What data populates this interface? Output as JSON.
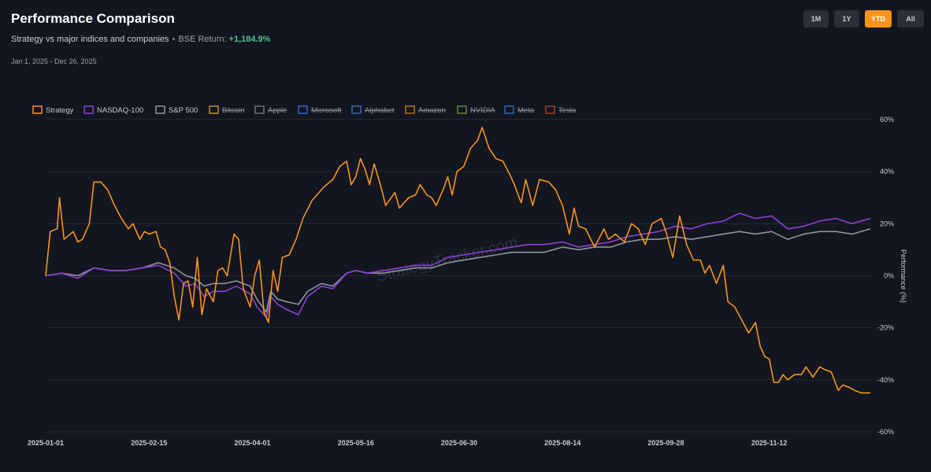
{
  "header": {
    "title": "Performance Comparison",
    "subtitle": "Strategy vs major indices and companies",
    "return_label": "BSE Return:",
    "return_value": "+1,184.9%",
    "date_range": "Jan 1, 2025 - Dec 26, 2025"
  },
  "range_buttons": [
    {
      "label": "1M",
      "active": false
    },
    {
      "label": "1Y",
      "active": false
    },
    {
      "label": "YTD",
      "active": true
    },
    {
      "label": "All",
      "active": false
    }
  ],
  "watermark": "StrategyTracker.com",
  "colors": {
    "background": "#121620",
    "grid": "#232833",
    "strategy": "#f7931a",
    "nasdaq": "#8b3fd6",
    "sp500": "#8f949c",
    "return_positive": "#4cc38a",
    "active_button": "#f7931a"
  },
  "chart_data": {
    "type": "line",
    "ylabel": "Performance (%)",
    "ylim": [
      -60,
      60
    ],
    "yticks": [
      "60%",
      "40%",
      "20%",
      "0%",
      "-20%",
      "-40%",
      "-60%"
    ],
    "x_ticks": [
      "2025-01-01",
      "2025-02-15",
      "2025-04-01",
      "2025-05-16",
      "2025-06-30",
      "2025-08-14",
      "2025-09-28",
      "2025-11-12"
    ],
    "x_range": [
      "2025-01-01",
      "2025-12-26"
    ],
    "grid": true,
    "legend_position": "top-left",
    "legend": [
      {
        "name": "Strategy",
        "color": "#f7931a",
        "visible": true
      },
      {
        "name": "NASDAQ-100",
        "color": "#8b3fd6",
        "visible": true
      },
      {
        "name": "S&P 500",
        "color": "#8f949c",
        "visible": true
      },
      {
        "name": "Bitcoin",
        "color": "#f7b731",
        "visible": false
      },
      {
        "name": "Apple",
        "color": "#8a8f99",
        "visible": false
      },
      {
        "name": "Microsoft",
        "color": "#3b82f6",
        "visible": false
      },
      {
        "name": "Alphabet",
        "color": "#4f7fe0",
        "visible": false
      },
      {
        "name": "Amazon",
        "color": "#f08c1a",
        "visible": false
      },
      {
        "name": "NVIDIA",
        "color": "#86a83a",
        "visible": false
      },
      {
        "name": "Meta",
        "color": "#3a7fd5",
        "visible": false
      },
      {
        "name": "Tesla",
        "color": "#d9481f",
        "visible": false
      }
    ],
    "series": [
      {
        "name": "Strategy",
        "color": "#f7931a",
        "points": [
          [
            "2025-01-01",
            0
          ],
          [
            "2025-01-03",
            17
          ],
          [
            "2025-01-06",
            18
          ],
          [
            "2025-01-07",
            30
          ],
          [
            "2025-01-09",
            14
          ],
          [
            "2025-01-13",
            17
          ],
          [
            "2025-01-15",
            13
          ],
          [
            "2025-01-17",
            14
          ],
          [
            "2025-01-20",
            20
          ],
          [
            "2025-01-22",
            36
          ],
          [
            "2025-01-25",
            36
          ],
          [
            "2025-01-28",
            33
          ],
          [
            "2025-01-31",
            27
          ],
          [
            "2025-02-03",
            22
          ],
          [
            "2025-02-06",
            18
          ],
          [
            "2025-02-08",
            20
          ],
          [
            "2025-02-11",
            14
          ],
          [
            "2025-02-13",
            17
          ],
          [
            "2025-02-15",
            16
          ],
          [
            "2025-02-18",
            17
          ],
          [
            "2025-02-20",
            11
          ],
          [
            "2025-02-22",
            10
          ],
          [
            "2025-02-24",
            5
          ],
          [
            "2025-02-26",
            -8
          ],
          [
            "2025-02-28",
            -17
          ],
          [
            "2025-03-02",
            -3
          ],
          [
            "2025-03-04",
            -2
          ],
          [
            "2025-03-06",
            -12
          ],
          [
            "2025-03-08",
            7
          ],
          [
            "2025-03-10",
            -15
          ],
          [
            "2025-03-12",
            -5
          ],
          [
            "2025-03-15",
            -10
          ],
          [
            "2025-03-17",
            2
          ],
          [
            "2025-03-19",
            3
          ],
          [
            "2025-03-21",
            0
          ],
          [
            "2025-03-24",
            16
          ],
          [
            "2025-03-26",
            14
          ],
          [
            "2025-03-28",
            -5
          ],
          [
            "2025-03-31",
            -12
          ],
          [
            "2025-04-02",
            0
          ],
          [
            "2025-04-04",
            6
          ],
          [
            "2025-04-06",
            -14
          ],
          [
            "2025-04-08",
            -18
          ],
          [
            "2025-04-10",
            2
          ],
          [
            "2025-04-12",
            -6
          ],
          [
            "2025-04-14",
            7
          ],
          [
            "2025-04-17",
            8
          ],
          [
            "2025-04-20",
            14
          ],
          [
            "2025-04-23",
            22
          ],
          [
            "2025-04-27",
            29
          ],
          [
            "2025-05-02",
            34
          ],
          [
            "2025-05-06",
            37
          ],
          [
            "2025-05-09",
            42
          ],
          [
            "2025-05-12",
            44
          ],
          [
            "2025-05-14",
            35
          ],
          [
            "2025-05-16",
            38
          ],
          [
            "2025-05-18",
            45
          ],
          [
            "2025-05-20",
            41
          ],
          [
            "2025-05-22",
            35
          ],
          [
            "2025-05-24",
            43
          ],
          [
            "2025-05-27",
            34
          ],
          [
            "2025-05-29",
            27
          ],
          [
            "2025-06-02",
            32
          ],
          [
            "2025-06-04",
            26
          ],
          [
            "2025-06-08",
            30
          ],
          [
            "2025-06-11",
            31
          ],
          [
            "2025-06-13",
            35
          ],
          [
            "2025-06-16",
            31
          ],
          [
            "2025-06-18",
            30
          ],
          [
            "2025-06-20",
            27
          ],
          [
            "2025-06-23",
            33
          ],
          [
            "2025-06-25",
            38
          ],
          [
            "2025-06-27",
            31
          ],
          [
            "2025-06-29",
            40
          ],
          [
            "2025-07-02",
            42
          ],
          [
            "2025-07-05",
            49
          ],
          [
            "2025-07-08",
            52
          ],
          [
            "2025-07-10",
            57
          ],
          [
            "2025-07-13",
            49
          ],
          [
            "2025-07-16",
            45
          ],
          [
            "2025-07-19",
            44
          ],
          [
            "2025-07-22",
            39
          ],
          [
            "2025-07-24",
            35
          ],
          [
            "2025-07-27",
            28
          ],
          [
            "2025-07-29",
            37
          ],
          [
            "2025-08-01",
            27
          ],
          [
            "2025-08-04",
            37
          ],
          [
            "2025-08-08",
            36
          ],
          [
            "2025-08-11",
            33
          ],
          [
            "2025-08-14",
            27
          ],
          [
            "2025-08-17",
            16
          ],
          [
            "2025-08-19",
            26
          ],
          [
            "2025-08-21",
            19
          ],
          [
            "2025-08-24",
            18
          ],
          [
            "2025-08-28",
            11
          ],
          [
            "2025-09-01",
            18
          ],
          [
            "2025-09-03",
            14
          ],
          [
            "2025-09-06",
            16
          ],
          [
            "2025-09-10",
            13
          ],
          [
            "2025-09-13",
            20
          ],
          [
            "2025-09-16",
            18
          ],
          [
            "2025-09-19",
            12
          ],
          [
            "2025-09-22",
            20
          ],
          [
            "2025-09-26",
            22
          ],
          [
            "2025-09-28",
            17
          ],
          [
            "2025-10-01",
            7
          ],
          [
            "2025-10-04",
            23
          ],
          [
            "2025-10-07",
            12
          ],
          [
            "2025-10-10",
            6
          ],
          [
            "2025-10-13",
            6
          ],
          [
            "2025-10-15",
            1
          ],
          [
            "2025-10-17",
            4
          ],
          [
            "2025-10-20",
            -3
          ],
          [
            "2025-10-23",
            4
          ],
          [
            "2025-10-25",
            -10
          ],
          [
            "2025-10-28",
            -12
          ],
          [
            "2025-10-31",
            -17
          ],
          [
            "2025-11-03",
            -22
          ],
          [
            "2025-11-06",
            -18
          ],
          [
            "2025-11-08",
            -27
          ],
          [
            "2025-11-10",
            -31
          ],
          [
            "2025-11-12",
            -32
          ],
          [
            "2025-11-14",
            -41
          ],
          [
            "2025-11-16",
            -41
          ],
          [
            "2025-11-18",
            -38
          ],
          [
            "2025-11-20",
            -40
          ],
          [
            "2025-11-23",
            -38
          ],
          [
            "2025-11-26",
            -38
          ],
          [
            "2025-11-28",
            -35
          ],
          [
            "2025-12-01",
            -39
          ],
          [
            "2025-12-04",
            -35
          ],
          [
            "2025-12-06",
            -36
          ],
          [
            "2025-12-09",
            -37
          ],
          [
            "2025-12-12",
            -44
          ],
          [
            "2025-12-14",
            -42
          ],
          [
            "2025-12-17",
            -43
          ],
          [
            "2025-12-19",
            -44
          ],
          [
            "2025-12-22",
            -45
          ],
          [
            "2025-12-24",
            -45
          ],
          [
            "2025-12-26",
            -45
          ]
        ]
      },
      {
        "name": "NASDAQ-100",
        "color": "#8b3fd6",
        "points": [
          [
            "2025-01-01",
            0
          ],
          [
            "2025-01-08",
            1
          ],
          [
            "2025-01-15",
            -1
          ],
          [
            "2025-01-22",
            3
          ],
          [
            "2025-01-29",
            2
          ],
          [
            "2025-02-05",
            2
          ],
          [
            "2025-02-12",
            3
          ],
          [
            "2025-02-19",
            4
          ],
          [
            "2025-02-26",
            1
          ],
          [
            "2025-03-03",
            -4
          ],
          [
            "2025-03-07",
            -3
          ],
          [
            "2025-03-11",
            -8
          ],
          [
            "2025-03-15",
            -6
          ],
          [
            "2025-03-20",
            -6
          ],
          [
            "2025-03-25",
            -4
          ],
          [
            "2025-03-31",
            -7
          ],
          [
            "2025-04-03",
            -12
          ],
          [
            "2025-04-07",
            -16
          ],
          [
            "2025-04-09",
            -8
          ],
          [
            "2025-04-12",
            -11
          ],
          [
            "2025-04-16",
            -13
          ],
          [
            "2025-04-21",
            -15
          ],
          [
            "2025-04-25",
            -8
          ],
          [
            "2025-05-01",
            -4
          ],
          [
            "2025-05-06",
            -5
          ],
          [
            "2025-05-12",
            1
          ],
          [
            "2025-05-16",
            2
          ],
          [
            "2025-05-21",
            1
          ],
          [
            "2025-05-28",
            2
          ],
          [
            "2025-06-04",
            3
          ],
          [
            "2025-06-11",
            4
          ],
          [
            "2025-06-18",
            4
          ],
          [
            "2025-06-25",
            7
          ],
          [
            "2025-07-02",
            8
          ],
          [
            "2025-07-09",
            9
          ],
          [
            "2025-07-16",
            10
          ],
          [
            "2025-07-23",
            11
          ],
          [
            "2025-07-30",
            12
          ],
          [
            "2025-08-06",
            12
          ],
          [
            "2025-08-14",
            13
          ],
          [
            "2025-08-21",
            11
          ],
          [
            "2025-08-28",
            12
          ],
          [
            "2025-09-04",
            13
          ],
          [
            "2025-09-11",
            15
          ],
          [
            "2025-09-18",
            16
          ],
          [
            "2025-09-25",
            17
          ],
          [
            "2025-10-02",
            19
          ],
          [
            "2025-10-09",
            18
          ],
          [
            "2025-10-16",
            20
          ],
          [
            "2025-10-23",
            21
          ],
          [
            "2025-10-30",
            24
          ],
          [
            "2025-11-06",
            22
          ],
          [
            "2025-11-13",
            23
          ],
          [
            "2025-11-20",
            18
          ],
          [
            "2025-11-27",
            19
          ],
          [
            "2025-12-04",
            21
          ],
          [
            "2025-12-11",
            22
          ],
          [
            "2025-12-18",
            20
          ],
          [
            "2025-12-26",
            22
          ]
        ]
      },
      {
        "name": "S&P 500",
        "color": "#8f949c",
        "points": [
          [
            "2025-01-01",
            0
          ],
          [
            "2025-01-08",
            1
          ],
          [
            "2025-01-15",
            0
          ],
          [
            "2025-01-22",
            3
          ],
          [
            "2025-01-29",
            2
          ],
          [
            "2025-02-05",
            2
          ],
          [
            "2025-02-12",
            3
          ],
          [
            "2025-02-19",
            5
          ],
          [
            "2025-02-26",
            3
          ],
          [
            "2025-03-03",
            0
          ],
          [
            "2025-03-07",
            -1
          ],
          [
            "2025-03-11",
            -4
          ],
          [
            "2025-03-15",
            -3
          ],
          [
            "2025-03-20",
            -3
          ],
          [
            "2025-03-25",
            -2
          ],
          [
            "2025-03-31",
            -4
          ],
          [
            "2025-04-03",
            -9
          ],
          [
            "2025-04-07",
            -14
          ],
          [
            "2025-04-09",
            -6
          ],
          [
            "2025-04-12",
            -9
          ],
          [
            "2025-04-16",
            -10
          ],
          [
            "2025-04-21",
            -11
          ],
          [
            "2025-04-25",
            -6
          ],
          [
            "2025-05-01",
            -3
          ],
          [
            "2025-05-06",
            -4
          ],
          [
            "2025-05-12",
            1
          ],
          [
            "2025-05-16",
            2
          ],
          [
            "2025-05-21",
            1
          ],
          [
            "2025-05-28",
            1
          ],
          [
            "2025-06-04",
            2
          ],
          [
            "2025-06-11",
            3
          ],
          [
            "2025-06-18",
            3
          ],
          [
            "2025-06-25",
            5
          ],
          [
            "2025-07-02",
            6
          ],
          [
            "2025-07-09",
            7
          ],
          [
            "2025-07-16",
            8
          ],
          [
            "2025-07-23",
            9
          ],
          [
            "2025-07-30",
            9
          ],
          [
            "2025-08-06",
            9
          ],
          [
            "2025-08-14",
            11
          ],
          [
            "2025-08-21",
            10
          ],
          [
            "2025-08-28",
            11
          ],
          [
            "2025-09-04",
            11
          ],
          [
            "2025-09-11",
            13
          ],
          [
            "2025-09-18",
            14
          ],
          [
            "2025-09-25",
            14
          ],
          [
            "2025-10-02",
            15
          ],
          [
            "2025-10-09",
            14
          ],
          [
            "2025-10-16",
            15
          ],
          [
            "2025-10-23",
            16
          ],
          [
            "2025-10-30",
            17
          ],
          [
            "2025-11-06",
            16
          ],
          [
            "2025-11-13",
            17
          ],
          [
            "2025-11-20",
            14
          ],
          [
            "2025-11-27",
            16
          ],
          [
            "2025-12-04",
            17
          ],
          [
            "2025-12-11",
            17
          ],
          [
            "2025-12-18",
            16
          ],
          [
            "2025-12-26",
            18
          ]
        ]
      }
    ]
  }
}
